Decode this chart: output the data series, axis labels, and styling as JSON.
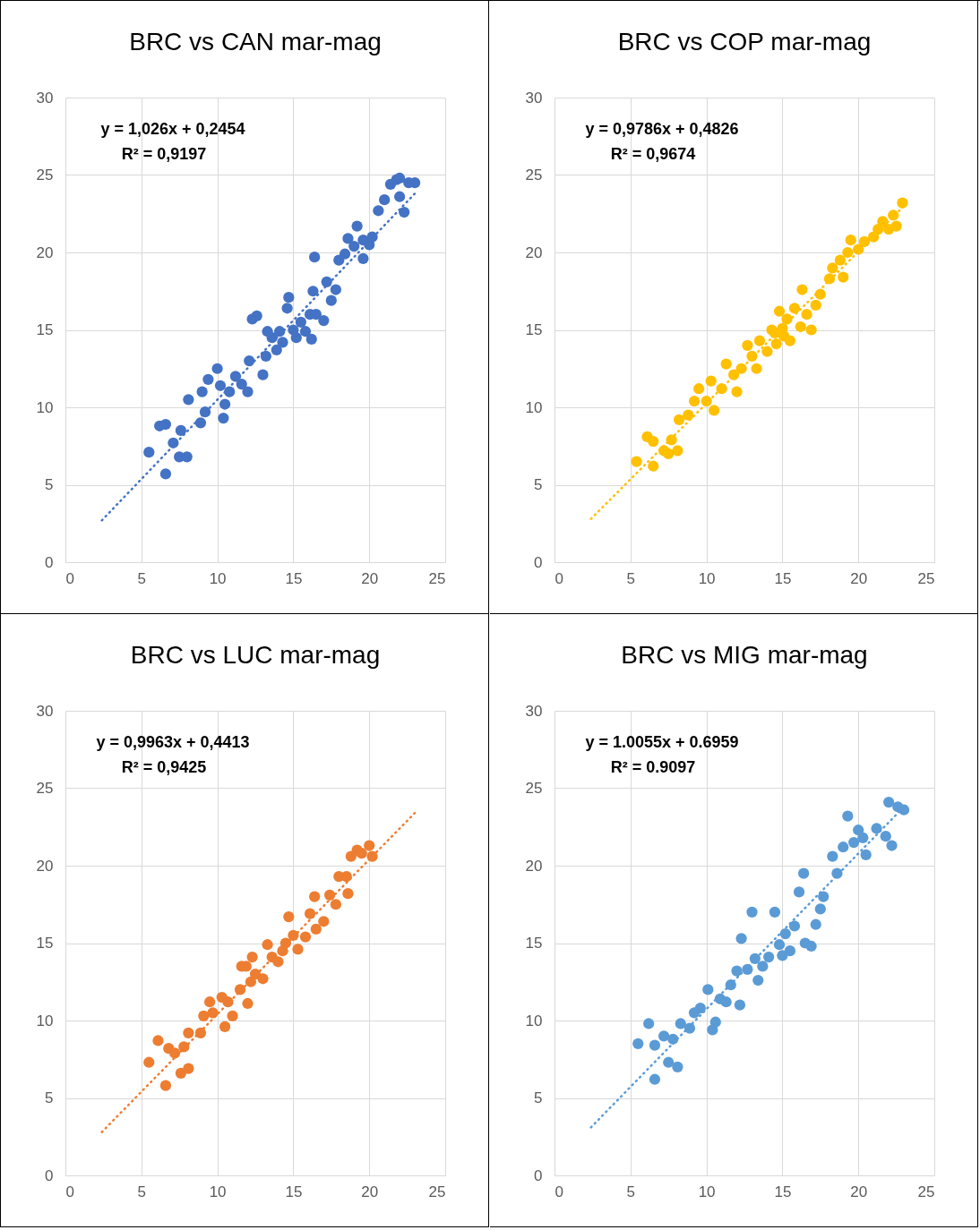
{
  "chart_data": [
    {
      "type": "scatter",
      "title": "BRC vs CAN mar-mag",
      "annotations": [
        "y = 1,026x + 0,2454",
        "R² = 0,9197"
      ],
      "xlim": [
        0,
        25
      ],
      "xticks": [
        0,
        5,
        10,
        15,
        20,
        25
      ],
      "ylim": [
        0,
        30
      ],
      "yticks": [
        0,
        5,
        10,
        15,
        20,
        25,
        30
      ],
      "grid": true,
      "series": [
        {
          "color": "#4472c4",
          "marker": "circle",
          "x": [
            5.5,
            6.2,
            6.6,
            6.6,
            7.1,
            7.5,
            7.6,
            8.0,
            8.1,
            8.9,
            9.0,
            9.2,
            9.4,
            10.0,
            10.2,
            10.4,
            10.5,
            10.8,
            11.2,
            11.6,
            12.0,
            12.1,
            12.3,
            12.6,
            13.0,
            13.2,
            13.6,
            13.9,
            14.3,
            14.6,
            14.7,
            15.0,
            15.2,
            15.5,
            15.8,
            16.1,
            16.2,
            16.3,
            16.4,
            16.5,
            17.0,
            17.2,
            17.5,
            17.8,
            18.0,
            18.4,
            18.6,
            19.0,
            19.2,
            19.6,
            20.0,
            20.2,
            20.6,
            21.0,
            21.4,
            21.8,
            22.0,
            22.3,
            22.6,
            23.0,
            22.0,
            19.6,
            13.3,
            14.1
          ],
          "values": [
            7.1,
            8.8,
            8.9,
            5.7,
            7.7,
            6.8,
            8.5,
            6.8,
            10.5,
            9.0,
            11.0,
            9.7,
            11.8,
            12.5,
            11.4,
            9.3,
            10.2,
            11.0,
            12.0,
            11.5,
            11.0,
            13.0,
            15.7,
            15.9,
            12.1,
            13.3,
            14.5,
            13.7,
            14.2,
            16.4,
            17.1,
            15.0,
            14.5,
            15.5,
            14.9,
            16.0,
            14.4,
            17.5,
            19.7,
            16.0,
            15.6,
            18.1,
            16.9,
            17.6,
            19.5,
            19.9,
            20.9,
            20.4,
            21.7,
            20.8,
            20.5,
            21.0,
            22.7,
            23.4,
            24.4,
            24.7,
            24.8,
            22.6,
            24.5,
            24.5,
            23.6,
            19.6,
            14.9,
            14.9
          ]
        },
        {
          "type": "line",
          "color": "#4472c4",
          "marker": "none",
          "line_style": "dotted",
          "x": [
            2.4,
            23
          ],
          "values": [
            2.7,
            23.8
          ]
        }
      ]
    },
    {
      "type": "scatter",
      "title": "BRC vs COP mar-mag",
      "annotations": [
        "y = 0,9786x + 0,4826",
        "R² = 0,9674"
      ],
      "xlim": [
        0,
        25
      ],
      "xticks": [
        0,
        5,
        10,
        15,
        20,
        25
      ],
      "ylim": [
        0,
        30
      ],
      "yticks": [
        0,
        5,
        10,
        15,
        20,
        25,
        30
      ],
      "grid": true,
      "series": [
        {
          "color": "#ffc000",
          "marker": "circle",
          "x": [
            5.4,
            6.1,
            6.5,
            6.5,
            7.2,
            7.5,
            7.7,
            8.1,
            8.2,
            8.8,
            9.2,
            9.5,
            10.0,
            10.3,
            10.5,
            11.0,
            11.3,
            11.8,
            12.0,
            12.3,
            12.7,
            13.0,
            13.3,
            13.5,
            14.0,
            14.3,
            14.6,
            14.8,
            15.0,
            15.3,
            15.5,
            15.8,
            16.2,
            16.3,
            16.6,
            16.9,
            17.2,
            17.5,
            18.1,
            18.3,
            18.8,
            19.0,
            19.3,
            19.5,
            20.0,
            20.4,
            21.0,
            21.3,
            21.6,
            22.0,
            22.3,
            22.5,
            22.9,
            14.5,
            15.1
          ],
          "values": [
            6.5,
            8.1,
            6.2,
            7.8,
            7.2,
            7.0,
            7.9,
            7.2,
            9.2,
            9.5,
            10.4,
            11.2,
            10.4,
            11.7,
            9.8,
            11.2,
            12.8,
            12.1,
            11.0,
            12.5,
            14.0,
            13.3,
            12.5,
            14.3,
            13.6,
            15.0,
            14.1,
            16.2,
            15.1,
            15.7,
            14.3,
            16.4,
            15.2,
            17.6,
            16.0,
            15.0,
            16.6,
            17.3,
            18.3,
            19.0,
            19.5,
            18.4,
            20.0,
            20.8,
            20.2,
            20.7,
            21.0,
            21.5,
            22.0,
            21.5,
            22.4,
            21.7,
            23.2,
            14.8,
            14.6
          ]
        },
        {
          "type": "line",
          "color": "#ffc000",
          "marker": "none",
          "line_style": "dotted",
          "x": [
            2.4,
            23
          ],
          "values": [
            2.8,
            23.0
          ]
        }
      ]
    },
    {
      "type": "scatter",
      "title": "BRC vs LUC mar-mag",
      "annotations": [
        "y = 0,9963x + 0,4413",
        "R² = 0,9425"
      ],
      "xlim": [
        0,
        25
      ],
      "xticks": [
        0,
        5,
        10,
        15,
        20,
        25
      ],
      "ylim": [
        0,
        30
      ],
      "yticks": [
        0,
        5,
        10,
        15,
        20,
        25,
        30
      ],
      "grid": true,
      "series": [
        {
          "color": "#ed7d31",
          "marker": "circle",
          "x": [
            5.5,
            6.1,
            6.6,
            6.8,
            7.2,
            7.6,
            7.8,
            8.1,
            8.1,
            8.9,
            9.1,
            9.5,
            9.7,
            10.3,
            10.5,
            10.7,
            11.0,
            11.5,
            11.9,
            12.0,
            12.2,
            12.3,
            12.5,
            13.0,
            13.3,
            13.6,
            14.0,
            14.5,
            14.7,
            15.0,
            15.3,
            15.8,
            16.1,
            16.4,
            16.5,
            17.0,
            17.4,
            17.8,
            18.0,
            18.5,
            18.8,
            19.2,
            19.5,
            20.0,
            20.2,
            18.6,
            11.6,
            14.3
          ],
          "values": [
            7.3,
            8.7,
            5.8,
            8.2,
            7.9,
            6.6,
            8.3,
            6.9,
            9.2,
            9.2,
            10.3,
            11.2,
            10.5,
            11.5,
            9.6,
            11.2,
            10.3,
            12.0,
            13.5,
            11.1,
            12.5,
            14.1,
            13.0,
            12.7,
            14.9,
            14.1,
            13.8,
            15.0,
            16.7,
            15.5,
            14.6,
            15.4,
            16.9,
            18.0,
            15.9,
            16.4,
            18.1,
            17.5,
            19.3,
            19.3,
            20.6,
            21.0,
            20.8,
            21.3,
            20.6,
            18.2,
            13.5,
            14.5
          ]
        },
        {
          "type": "line",
          "color": "#ed7d31",
          "marker": "none",
          "line_style": "dotted",
          "x": [
            2.4,
            23
          ],
          "values": [
            2.8,
            23.4
          ]
        }
      ]
    },
    {
      "type": "scatter",
      "title": "BRC vs MIG mar-mag",
      "annotations": [
        "y = 1.0055x + 0.6959",
        "R² = 0.9097"
      ],
      "xlim": [
        0,
        25
      ],
      "xticks": [
        0,
        5,
        10,
        15,
        20,
        25
      ],
      "ylim": [
        0,
        30
      ],
      "yticks": [
        0,
        5,
        10,
        15,
        20,
        25,
        30
      ],
      "grid": true,
      "series": [
        {
          "color": "#5b9bd5",
          "marker": "circle",
          "x": [
            5.5,
            6.2,
            6.6,
            6.6,
            7.2,
            7.5,
            7.8,
            8.1,
            8.3,
            8.9,
            9.2,
            9.6,
            10.1,
            10.4,
            10.6,
            10.9,
            11.3,
            11.6,
            12.0,
            12.2,
            12.3,
            12.7,
            13.0,
            13.2,
            13.4,
            13.7,
            14.1,
            14.5,
            14.8,
            15.2,
            15.5,
            15.8,
            16.1,
            16.5,
            16.9,
            17.2,
            17.5,
            17.7,
            18.3,
            18.6,
            19.0,
            19.3,
            19.7,
            20.0,
            20.3,
            20.5,
            21.2,
            21.8,
            22.2,
            22.0,
            22.6,
            23.0,
            15.0,
            16.4
          ],
          "values": [
            8.5,
            9.8,
            6.2,
            8.4,
            9.0,
            7.3,
            8.8,
            7.0,
            9.8,
            9.5,
            10.5,
            10.8,
            12.0,
            9.4,
            9.9,
            11.4,
            11.2,
            12.3,
            13.2,
            11.0,
            15.3,
            13.3,
            17.0,
            14.0,
            12.6,
            13.5,
            14.1,
            17.0,
            14.9,
            15.6,
            14.5,
            16.1,
            18.3,
            15.0,
            14.8,
            16.2,
            17.2,
            18.0,
            20.6,
            19.5,
            21.2,
            23.2,
            21.5,
            22.3,
            21.8,
            20.7,
            22.4,
            21.9,
            21.3,
            24.1,
            23.8,
            23.6,
            14.2,
            19.5
          ]
        },
        {
          "type": "line",
          "color": "#5b9bd5",
          "marker": "none",
          "line_style": "dotted",
          "x": [
            2.4,
            23
          ],
          "values": [
            3.1,
            23.8
          ]
        }
      ]
    }
  ]
}
